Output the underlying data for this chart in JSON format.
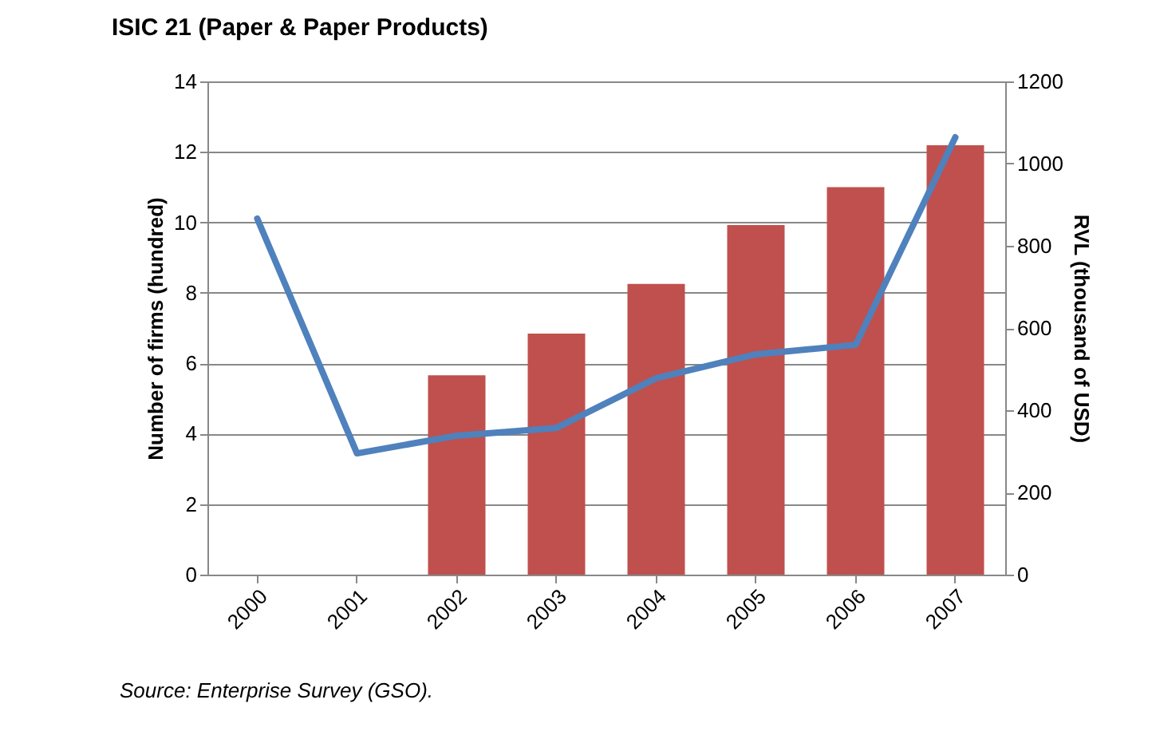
{
  "chart_data": {
    "type": "bar",
    "title": "ISIC 21 (Paper & Paper Products)",
    "ylabel": "Number of firms (hundred)",
    "y2label": "RVL (thousand of USD)",
    "categories": [
      "2000",
      "2001",
      "2002",
      "2003",
      "2004",
      "2005",
      "2006",
      "2007"
    ],
    "series": [
      {
        "color": "#c0504d",
        "values": [
          null,
          null,
          5.66,
          6.84,
          8.25,
          9.92,
          11.0,
          12.19
        ]
      },
      {
        "type": "line",
        "axis": "y2",
        "color": "#4f81bd",
        "values": [
          866,
          295,
          338,
          357,
          478,
          536,
          559,
          1064
        ]
      }
    ],
    "ylim": [
      0,
      14
    ],
    "yticks": [
      0,
      2,
      4,
      6,
      8,
      10,
      12,
      14
    ],
    "y2lim": [
      0,
      1200
    ],
    "y2ticks": [
      0,
      200,
      400,
      600,
      800,
      1000,
      1200
    ],
    "grid": "y",
    "marker": "none",
    "line_style": "solid",
    "annotations": [
      "Source:  Enterprise Survey (GSO)."
    ]
  }
}
